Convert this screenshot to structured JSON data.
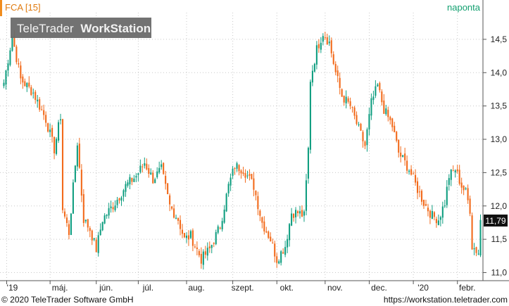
{
  "chart_data": {
    "type": "candlestick",
    "instrument": "FCA [15]",
    "period": "naponta",
    "watermark": {
      "brand": "TeleTrader",
      "product": "WorkStation"
    },
    "last_price": "11,79",
    "ylim": [
      10.9,
      14.9
    ],
    "y_ticks": [
      {
        "value": 14.5,
        "label": "14,5"
      },
      {
        "value": 14.0,
        "label": "14,0"
      },
      {
        "value": 13.5,
        "label": "13,5"
      },
      {
        "value": 13.0,
        "label": "13,0"
      },
      {
        "value": 12.5,
        "label": "12,5"
      },
      {
        "value": 12.0,
        "label": "12,0"
      },
      {
        "value": 11.5,
        "label": "11,5"
      },
      {
        "value": 11.0,
        "label": "11,0"
      }
    ],
    "x_ticks": [
      "'19",
      "máj.",
      "jún.",
      "júl.",
      "aug.",
      "szept.",
      "okt.",
      "nov.",
      "dec.",
      "'20",
      "febr."
    ],
    "up_color": "#109e80",
    "down_color": "#f26a1b",
    "close_anchors": [
      [
        0,
        13.85
      ],
      [
        4,
        14.55
      ],
      [
        8,
        13.9
      ],
      [
        14,
        13.7
      ],
      [
        20,
        13.3
      ],
      [
        24,
        12.85
      ],
      [
        27,
        13.35
      ],
      [
        28,
        11.95
      ],
      [
        31,
        11.6
      ],
      [
        35,
        12.95
      ],
      [
        38,
        11.8
      ],
      [
        41,
        11.65
      ],
      [
        44,
        11.35
      ],
      [
        47,
        11.8
      ],
      [
        53,
        12.05
      ],
      [
        58,
        12.3
      ],
      [
        63,
        12.45
      ],
      [
        67,
        12.65
      ],
      [
        71,
        12.4
      ],
      [
        75,
        12.55
      ],
      [
        79,
        12.0
      ],
      [
        83,
        11.8
      ],
      [
        86,
        11.5
      ],
      [
        89,
        11.55
      ],
      [
        94,
        11.2
      ],
      [
        98,
        11.35
      ],
      [
        103,
        11.7
      ],
      [
        107,
        12.3
      ],
      [
        110,
        12.6
      ],
      [
        114,
        12.55
      ],
      [
        119,
        12.3
      ],
      [
        123,
        11.75
      ],
      [
        127,
        11.5
      ],
      [
        130,
        11.2
      ],
      [
        134,
        11.4
      ],
      [
        137,
        11.9
      ],
      [
        140,
        11.9
      ],
      [
        143,
        11.85
      ],
      [
        145,
        12.85
      ],
      [
        146,
        13.9
      ],
      [
        149,
        14.35
      ],
      [
        152,
        14.6
      ],
      [
        155,
        14.45
      ],
      [
        158,
        14.0
      ],
      [
        161,
        13.65
      ],
      [
        165,
        13.5
      ],
      [
        169,
        13.15
      ],
      [
        172,
        12.9
      ],
      [
        175,
        13.55
      ],
      [
        178,
        13.8
      ],
      [
        181,
        13.45
      ],
      [
        185,
        13.2
      ],
      [
        188,
        12.8
      ],
      [
        193,
        12.55
      ],
      [
        197,
        12.25
      ],
      [
        200,
        12.05
      ],
      [
        204,
        11.85
      ],
      [
        207,
        11.8
      ],
      [
        210,
        12.05
      ],
      [
        212,
        12.45
      ],
      [
        215,
        12.55
      ],
      [
        218,
        12.3
      ],
      [
        220,
        12.2
      ],
      [
        222,
        11.95
      ],
      [
        223,
        11.4
      ],
      [
        226,
        11.3
      ],
      [
        227,
        11.79
      ]
    ]
  }
}
